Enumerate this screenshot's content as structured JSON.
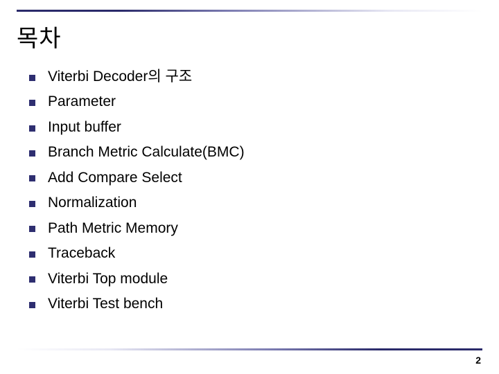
{
  "slide": {
    "title": "목차",
    "page_number": "2",
    "bullet_color": "#2e2e70",
    "text_color": "#000000",
    "title_fontsize": 34,
    "item_fontsize": 21,
    "background_color": "#ffffff",
    "rule_gradient_from": "#2a2a6a",
    "rule_gradient_to": "#ffffff",
    "items": [
      "Viterbi Decoder의 구조",
      "Parameter",
      "Input buffer",
      "Branch Metric Calculate(BMC)",
      "Add Compare Select",
      "Normalization",
      "Path Metric Memory",
      "Traceback",
      "Viterbi Top module",
      "Viterbi Test bench"
    ]
  }
}
